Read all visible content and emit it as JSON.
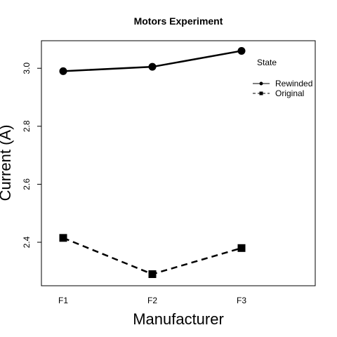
{
  "chart_data": {
    "type": "line",
    "title": "Motors Experiment",
    "xlabel": "Manufacturer",
    "ylabel": "Current (A)",
    "categories": [
      "F1",
      "F2",
      "F3"
    ],
    "yticks": [
      "2.4",
      "2.6",
      "2.8",
      "3.0"
    ],
    "ylim": [
      2.25,
      3.095
    ],
    "legend_title": "State",
    "legend_position": "top-right",
    "grid": false,
    "series": [
      {
        "name": "Rewinded",
        "values": [
          2.99,
          3.005,
          3.06
        ],
        "line": "solid",
        "marker": "circle",
        "color": "#000000"
      },
      {
        "name": "Original",
        "values": [
          2.415,
          2.29,
          2.38
        ],
        "line": "dashed",
        "marker": "square",
        "color": "#000000"
      }
    ]
  }
}
